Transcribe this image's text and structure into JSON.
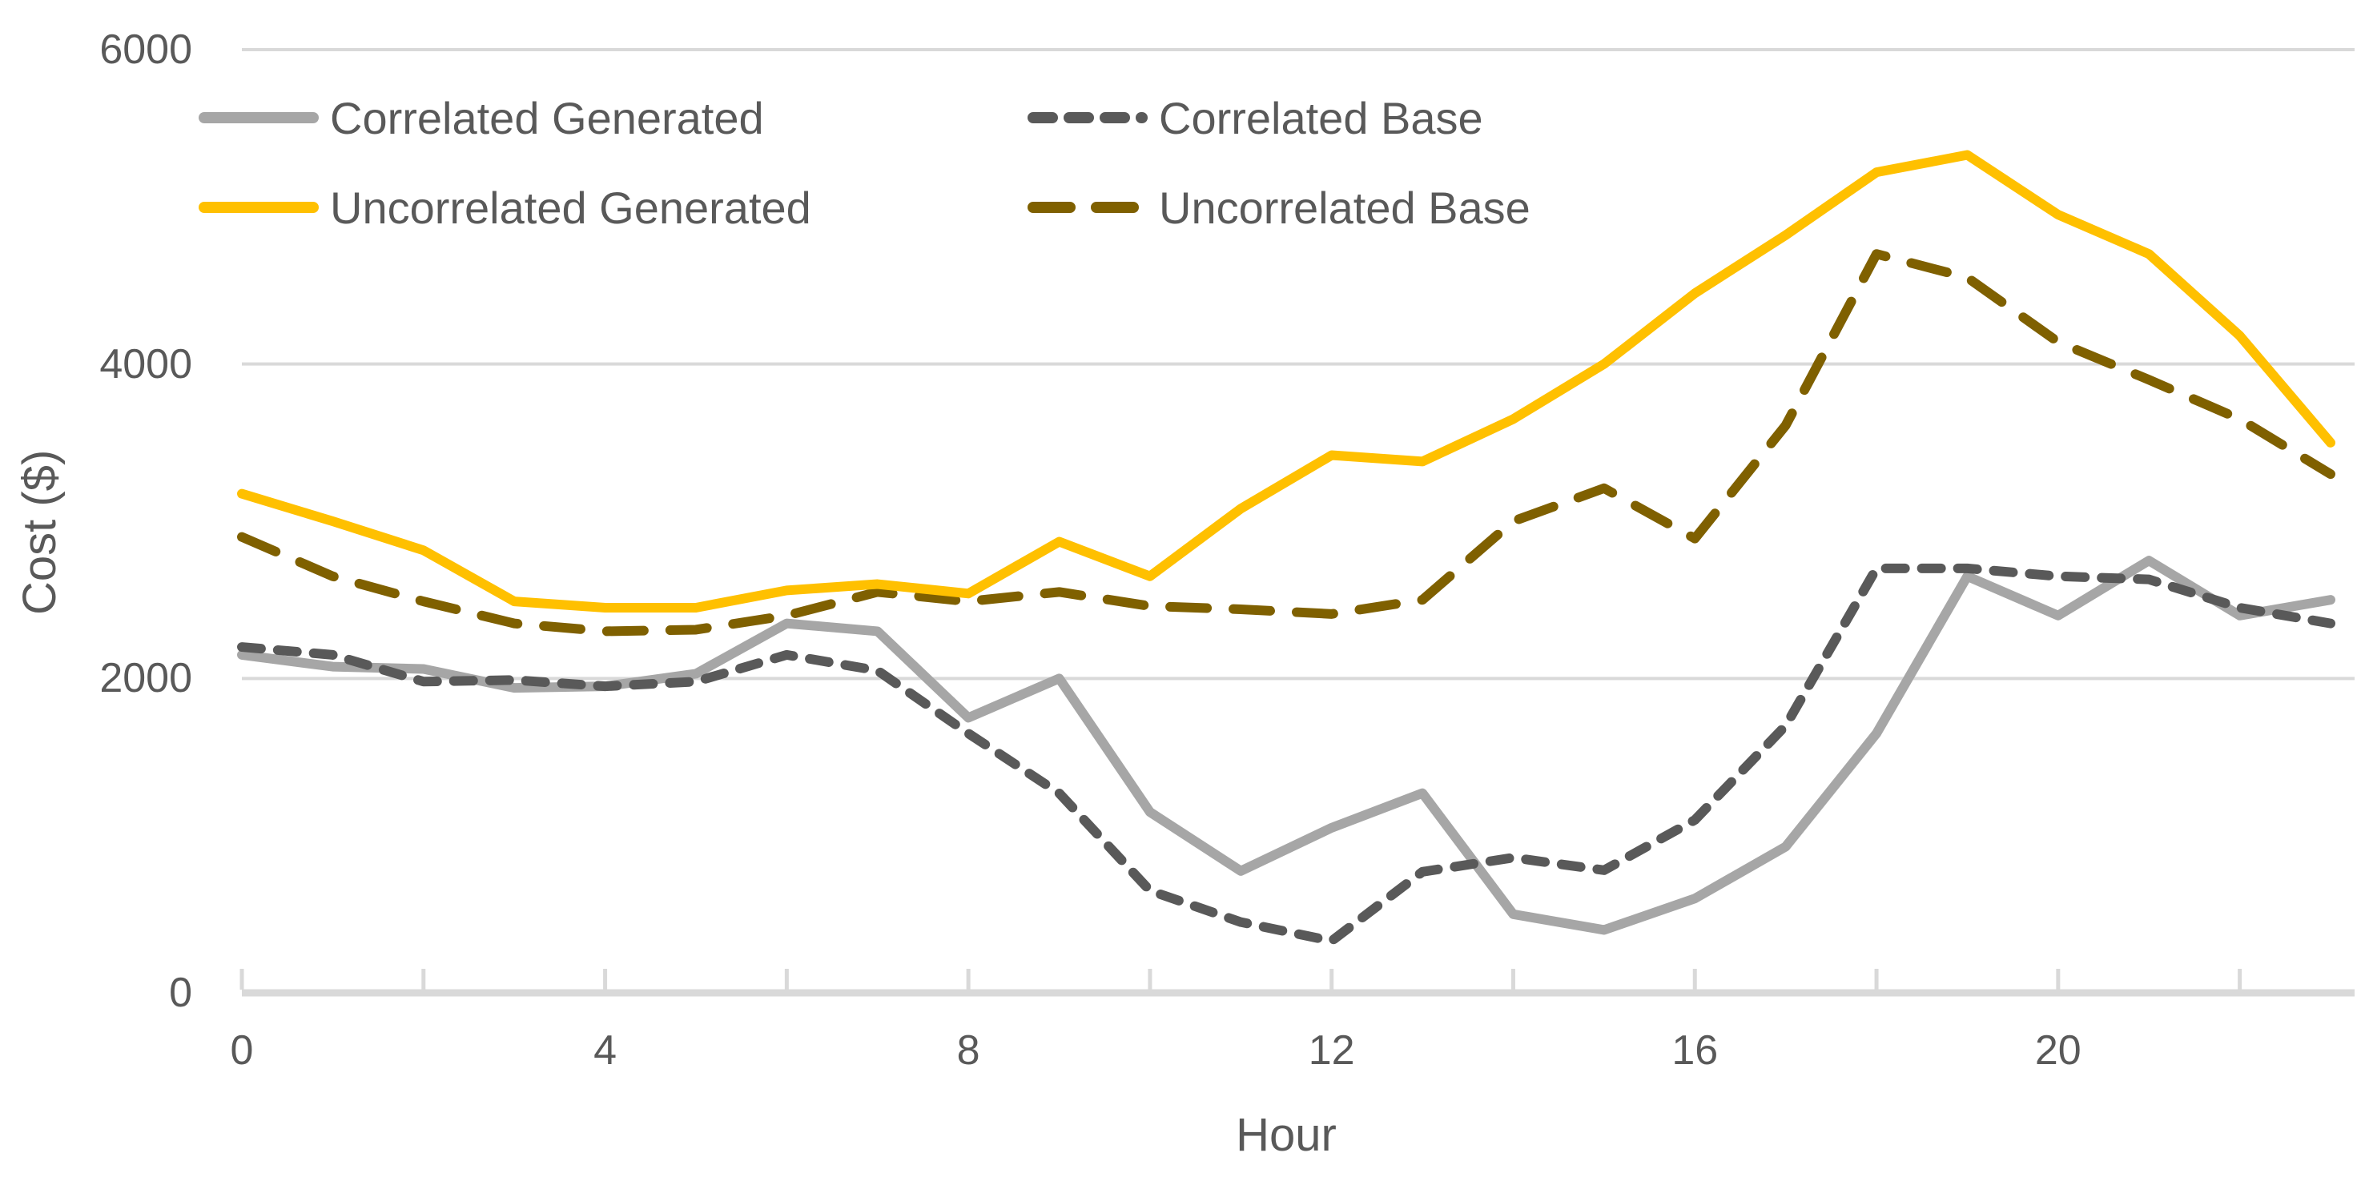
{
  "chart_data": {
    "type": "line",
    "title": "",
    "xlabel": "Hour",
    "ylabel": "Cost ($)",
    "x": [
      0,
      1,
      2,
      3,
      4,
      5,
      6,
      7,
      8,
      9,
      10,
      11,
      12,
      13,
      14,
      15,
      16,
      17,
      18,
      19,
      20,
      21,
      22,
      23
    ],
    "xlim": [
      0,
      23
    ],
    "ylim": [
      0,
      6000
    ],
    "yticks": [
      0,
      2000,
      4000,
      6000
    ],
    "xtick_minor_step": 2,
    "xtick_labels": [
      0,
      4,
      8,
      12,
      16,
      20
    ],
    "grid": "horizontal",
    "legend_position": "top-left-inside",
    "series": [
      {
        "name": "Correlated Generated",
        "color": "#A6A6A6",
        "style": "solid",
        "values": [
          2150,
          2075,
          2060,
          1940,
          1950,
          2030,
          2350,
          2300,
          1750,
          2000,
          1150,
          775,
          1050,
          1270,
          500,
          400,
          600,
          930,
          1650,
          2650,
          2400,
          2750,
          2400,
          2500
        ]
      },
      {
        "name": "Correlated Base",
        "color": "#595959",
        "style": "dashed-short",
        "values": [
          2200,
          2150,
          1980,
          1990,
          1950,
          1980,
          2150,
          2050,
          1650,
          1270,
          650,
          450,
          330,
          770,
          860,
          780,
          1100,
          1700,
          2700,
          2700,
          2650,
          2630,
          2450,
          2350
        ]
      },
      {
        "name": "Uncorrelated Generated",
        "color": "#FFC000",
        "style": "solid",
        "values": [
          3175,
          3000,
          2815,
          2490,
          2450,
          2450,
          2560,
          2600,
          2540,
          2870,
          2650,
          3080,
          3420,
          3380,
          3650,
          4000,
          4450,
          4820,
          5220,
          5330,
          4950,
          4700,
          4180,
          3500
        ]
      },
      {
        "name": "Uncorrelated Base",
        "color": "#7F6000",
        "style": "dashed-long",
        "values": [
          2900,
          2650,
          2490,
          2350,
          2300,
          2310,
          2400,
          2550,
          2490,
          2550,
          2460,
          2440,
          2410,
          2500,
          3000,
          3210,
          2890,
          3610,
          4700,
          4550,
          4140,
          3900,
          3650,
          3300
        ]
      }
    ],
    "colors": {
      "grid": "#D9D9D9",
      "axis": "#D9D9D9",
      "text": "#595959"
    }
  }
}
